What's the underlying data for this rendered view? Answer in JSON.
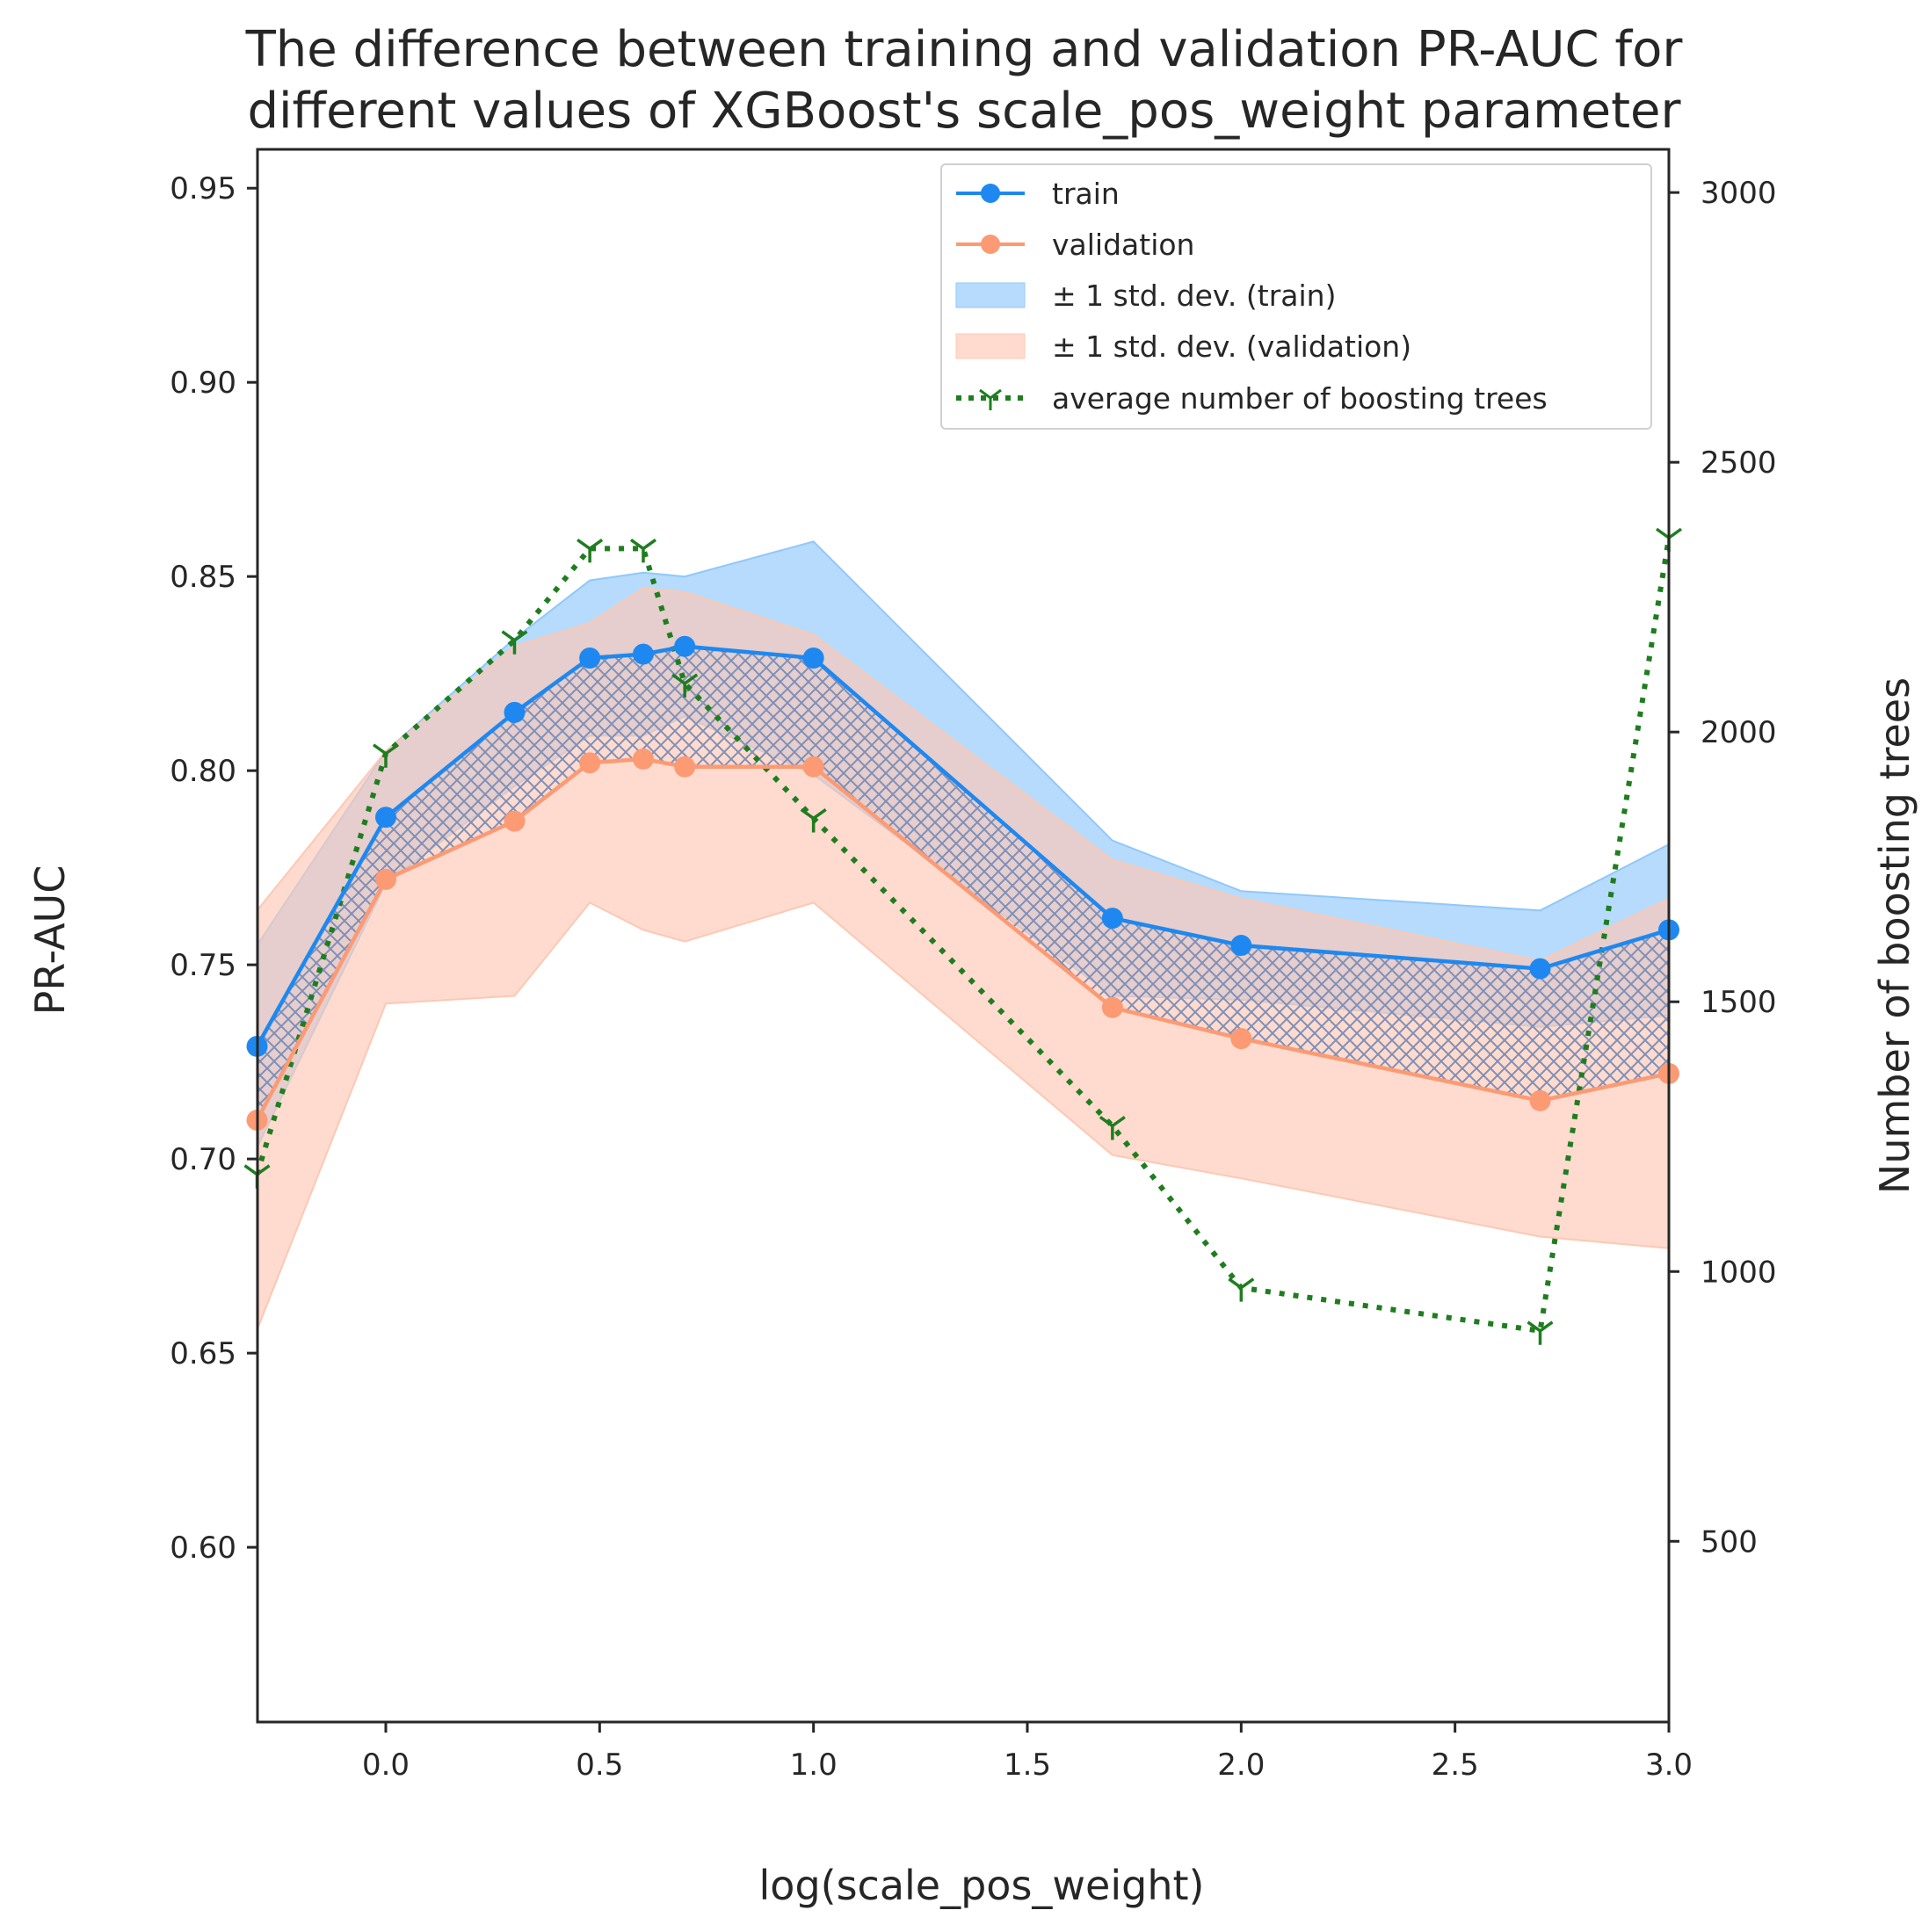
{
  "chart_data": {
    "type": "line",
    "title_lines": [
      "The difference between training and validation PR-AUC for",
      "different values of XGBoost's scale_pos_weight parameter"
    ],
    "xlabel": "log(scale_pos_weight)",
    "ylabel": "PR-AUC",
    "y2label": "Number of boosting trees",
    "xlim": [
      -0.3,
      3.0
    ],
    "ylim": [
      0.555,
      0.96
    ],
    "y2lim": [
      165,
      3080
    ],
    "x_ticks": [
      0.0,
      0.5,
      1.0,
      1.5,
      2.0,
      2.5,
      3.0
    ],
    "x_tick_labels": [
      "0.0",
      "0.5",
      "1.0",
      "1.5",
      "2.0",
      "2.5",
      "3.0"
    ],
    "y_ticks": [
      0.6,
      0.65,
      0.7,
      0.75,
      0.8,
      0.85,
      0.9,
      0.95
    ],
    "y_tick_labels": [
      "0.60",
      "0.65",
      "0.70",
      "0.75",
      "0.80",
      "0.85",
      "0.90",
      "0.95"
    ],
    "y2_ticks": [
      500,
      1000,
      1500,
      2000,
      2500,
      3000
    ],
    "y2_tick_labels": [
      "500",
      "1000",
      "1500",
      "2000",
      "2500",
      "3000"
    ],
    "x": [
      -0.301,
      0.0,
      0.301,
      0.477,
      0.602,
      0.699,
      1.0,
      1.699,
      2.0,
      2.699,
      3.0
    ],
    "series": [
      {
        "name": "train",
        "color": "#1e88f0",
        "values": [
          0.729,
          0.788,
          0.815,
          0.829,
          0.83,
          0.832,
          0.829,
          0.762,
          0.755,
          0.749,
          0.759
        ],
        "band_upper": [
          0.755,
          0.805,
          0.834,
          0.849,
          0.851,
          0.85,
          0.859,
          0.782,
          0.769,
          0.764,
          0.781
        ],
        "band_lower": [
          0.703,
          0.771,
          0.796,
          0.809,
          0.809,
          0.814,
          0.799,
          0.742,
          0.741,
          0.734,
          0.737
        ]
      },
      {
        "name": "validation",
        "color": "#fc9a74",
        "values": [
          0.71,
          0.772,
          0.787,
          0.802,
          0.803,
          0.801,
          0.801,
          0.739,
          0.731,
          0.715,
          0.722
        ],
        "band_upper": [
          0.764,
          0.805,
          0.832,
          0.838,
          0.847,
          0.846,
          0.835,
          0.777,
          0.767,
          0.751,
          0.767
        ],
        "band_lower": [
          0.656,
          0.74,
          0.742,
          0.766,
          0.759,
          0.756,
          0.766,
          0.701,
          0.695,
          0.68,
          0.677
        ]
      }
    ],
    "trees": {
      "name": "average number of boosting trees",
      "color": "#1f7d1f",
      "values": [
        1180,
        1960,
        2170,
        2340,
        2340,
        2090,
        1840,
        1270,
        970,
        890,
        2360
      ]
    },
    "legend": {
      "placement": "top-right",
      "entries": [
        "train",
        "validation",
        "± 1 std. dev. (train)",
        "± 1 std. dev. (validation)",
        "average number of boosting trees"
      ]
    },
    "colors": {
      "train_band": "#90c8fb",
      "validation_band": "#fdc8b3",
      "overlap_hatch": "#7f8fb7"
    },
    "grid": false
  }
}
